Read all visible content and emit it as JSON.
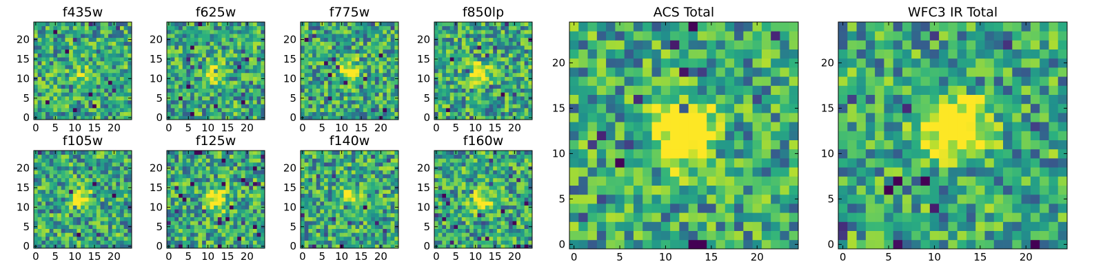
{
  "chart_data": [
    {
      "type": "heatmap",
      "title": "f435w",
      "grid_size": 25,
      "xlim": [
        0,
        24
      ],
      "ylim": [
        0,
        24
      ],
      "xticks": [
        0,
        5,
        10,
        15,
        20
      ],
      "yticks": [
        0,
        5,
        10,
        15,
        20
      ],
      "colormap": "viridis",
      "grid": false,
      "source_peak": [
        12,
        11
      ],
      "source_strength": 0.15,
      "noise_seed": 11
    },
    {
      "type": "heatmap",
      "title": "f625w",
      "grid_size": 25,
      "xlim": [
        0,
        24
      ],
      "ylim": [
        0,
        24
      ],
      "xticks": [
        0,
        5,
        10,
        15,
        20
      ],
      "yticks": [
        0,
        5,
        10,
        15,
        20
      ],
      "colormap": "viridis",
      "grid": false,
      "source_peak": [
        11,
        12
      ],
      "source_strength": 0.4,
      "noise_seed": 23
    },
    {
      "type": "heatmap",
      "title": "f775w",
      "grid_size": 25,
      "xlim": [
        0,
        24
      ],
      "ylim": [
        0,
        24
      ],
      "xticks": [
        0,
        5,
        10,
        15,
        20
      ],
      "yticks": [
        0,
        5,
        10,
        15,
        20
      ],
      "colormap": "viridis",
      "grid": false,
      "source_peak": [
        12,
        12
      ],
      "source_strength": 0.45,
      "noise_seed": 37
    },
    {
      "type": "heatmap",
      "title": "f850lp",
      "grid_size": 25,
      "xlim": [
        0,
        24
      ],
      "ylim": [
        0,
        24
      ],
      "xticks": [
        0,
        5,
        10,
        15,
        20
      ],
      "yticks": [
        0,
        5,
        10,
        15,
        20
      ],
      "colormap": "viridis",
      "grid": false,
      "source_peak": [
        11,
        11
      ],
      "source_strength": 0.5,
      "noise_seed": 41
    },
    {
      "type": "heatmap",
      "title": "f105w",
      "grid_size": 25,
      "xlim": [
        0,
        24
      ],
      "ylim": [
        0,
        24
      ],
      "xticks": [
        0,
        5,
        10,
        15,
        20
      ],
      "yticks": [
        0,
        5,
        10,
        15,
        20
      ],
      "colormap": "viridis",
      "grid": false,
      "source_peak": [
        12,
        12
      ],
      "source_strength": 0.45,
      "noise_seed": 53
    },
    {
      "type": "heatmap",
      "title": "f125w",
      "grid_size": 25,
      "xlim": [
        0,
        24
      ],
      "ylim": [
        0,
        24
      ],
      "xticks": [
        0,
        5,
        10,
        15,
        20
      ],
      "yticks": [
        0,
        5,
        10,
        15,
        20
      ],
      "colormap": "viridis",
      "grid": false,
      "source_peak": [
        12,
        12
      ],
      "source_strength": 0.55,
      "noise_seed": 67
    },
    {
      "type": "heatmap",
      "title": "f140w",
      "grid_size": 25,
      "xlim": [
        0,
        24
      ],
      "ylim": [
        0,
        24
      ],
      "xticks": [
        0,
        5,
        10,
        15,
        20
      ],
      "yticks": [
        0,
        5,
        10,
        15,
        20
      ],
      "colormap": "viridis",
      "grid": false,
      "source_peak": [
        12,
        13
      ],
      "source_strength": 0.35,
      "noise_seed": 79
    },
    {
      "type": "heatmap",
      "title": "f160w",
      "grid_size": 25,
      "xlim": [
        0,
        24
      ],
      "ylim": [
        0,
        24
      ],
      "xticks": [
        0,
        5,
        10,
        15,
        20
      ],
      "yticks": [
        0,
        5,
        10,
        15,
        20
      ],
      "colormap": "viridis",
      "grid": false,
      "source_peak": [
        11,
        12
      ],
      "source_strength": 0.5,
      "noise_seed": 83
    },
    {
      "type": "heatmap",
      "title": "ACS Total",
      "grid_size": 25,
      "xlim": [
        0,
        24
      ],
      "ylim": [
        0,
        24
      ],
      "xticks": [
        0,
        5,
        10,
        15,
        20
      ],
      "yticks": [
        0,
        5,
        10,
        15,
        20
      ],
      "colormap": "viridis",
      "grid": false,
      "source_peak": [
        12,
        12
      ],
      "source_strength": 0.75,
      "noise_seed": 97
    },
    {
      "type": "heatmap",
      "title": "WFC3 IR Total",
      "grid_size": 25,
      "xlim": [
        0,
        24
      ],
      "ylim": [
        0,
        24
      ],
      "xticks": [
        0,
        5,
        10,
        15,
        20
      ],
      "yticks": [
        0,
        5,
        10,
        15,
        20
      ],
      "colormap": "viridis",
      "grid": false,
      "source_peak": [
        12,
        13
      ],
      "source_strength": 0.75,
      "noise_seed": 101
    }
  ]
}
